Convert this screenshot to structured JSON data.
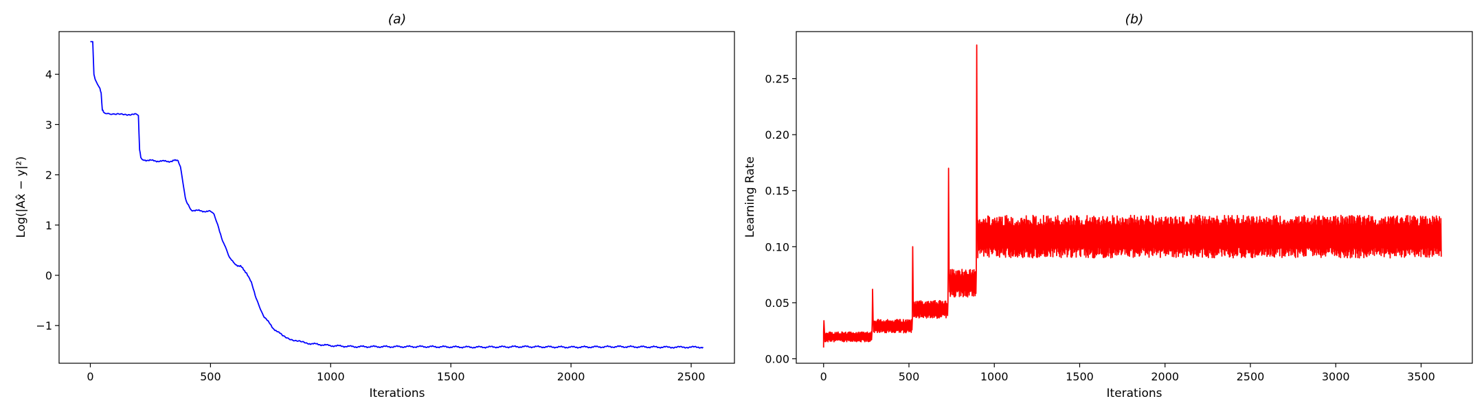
{
  "chart_data": [
    {
      "type": "line",
      "title": "(a)",
      "xlabel": "Iterations",
      "ylabel": "Log(|Ax̂ − y|²)",
      "xlim": [
        -130,
        2680
      ],
      "ylim": [
        -1.75,
        4.85
      ],
      "xticks": [
        0,
        500,
        1000,
        1500,
        2000,
        2500
      ],
      "yticks": [
        -1,
        0,
        1,
        2,
        3,
        4
      ],
      "xtick_labels": [
        "0",
        "500",
        "1000",
        "1500",
        "2000",
        "2500"
      ],
      "ytick_labels": [
        "−1",
        "0",
        "1",
        "2",
        "3",
        "4"
      ],
      "grid": false,
      "series": [
        {
          "color": "#0000ff",
          "x": [
            0,
            10,
            15,
            20,
            30,
            40,
            45,
            50,
            55,
            70,
            100,
            150,
            185,
            200,
            205,
            210,
            220,
            260,
            300,
            340,
            365,
            375,
            385,
            395,
            400,
            420,
            460,
            500,
            515,
            530,
            550,
            575,
            600,
            625,
            650,
            670,
            690,
            720,
            760,
            800,
            850,
            900,
            1000,
            1100,
            1200,
            1400,
            1600,
            1800,
            2000,
            2200,
            2400,
            2550
          ],
          "y": [
            4.65,
            4.65,
            4.0,
            3.9,
            3.8,
            3.72,
            3.62,
            3.28,
            3.25,
            3.22,
            3.2,
            3.2,
            3.21,
            3.18,
            2.5,
            2.35,
            2.3,
            2.28,
            2.27,
            2.27,
            2.3,
            2.15,
            1.85,
            1.55,
            1.45,
            1.3,
            1.28,
            1.27,
            1.2,
            1.0,
            0.7,
            0.4,
            0.22,
            0.18,
            0.05,
            -0.15,
            -0.45,
            -0.8,
            -1.05,
            -1.2,
            -1.3,
            -1.35,
            -1.4,
            -1.42,
            -1.42,
            -1.42,
            -1.43,
            -1.42,
            -1.43,
            -1.42,
            -1.43,
            -1.43
          ]
        }
      ]
    },
    {
      "type": "line",
      "title": "(b)",
      "xlabel": "Iterations",
      "ylabel": "Learning Rate",
      "xlim": [
        -160,
        3800
      ],
      "ylim": [
        -0.004,
        0.292
      ],
      "xticks": [
        0,
        500,
        1000,
        1500,
        2000,
        2500,
        3000,
        3500
      ],
      "yticks": [
        0.0,
        0.05,
        0.1,
        0.15,
        0.2,
        0.25
      ],
      "xtick_labels": [
        "0",
        "500",
        "1000",
        "1500",
        "2000",
        "2500",
        "3000",
        "3500"
      ],
      "ytick_labels": [
        "0.00",
        "0.05",
        "0.10",
        "0.15",
        "0.20",
        "0.25"
      ],
      "grid": false,
      "series": [
        {
          "color": "#ff0000",
          "segments": [
            {
              "x0": 0,
              "x1": 285,
              "lo": 0.015,
              "hi": 0.024,
              "peak": 0.034
            },
            {
              "x0": 285,
              "x1": 520,
              "lo": 0.023,
              "hi": 0.035,
              "peak": 0.062
            },
            {
              "x0": 520,
              "x1": 730,
              "lo": 0.036,
              "hi": 0.052,
              "peak": 0.1
            },
            {
              "x0": 730,
              "x1": 895,
              "lo": 0.055,
              "hi": 0.08,
              "peak": 0.17
            },
            {
              "x0": 895,
              "x1": 3620,
              "lo": 0.09,
              "hi": 0.128,
              "peak": 0.28
            }
          ]
        }
      ]
    }
  ]
}
